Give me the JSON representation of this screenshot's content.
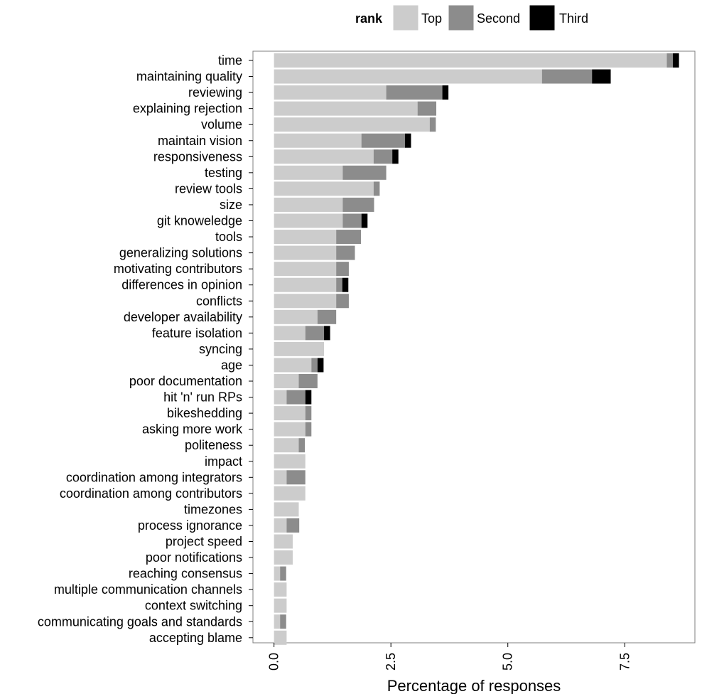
{
  "chart_data": {
    "type": "bar",
    "orientation": "horizontal",
    "stacked": true,
    "xlabel": "Percentage of responses",
    "ylabel": "",
    "xlim": [
      -0.45,
      9.0
    ],
    "xticks": [
      0.0,
      2.5,
      5.0,
      7.5
    ],
    "xtick_labels": [
      "0.0",
      "2.5",
      "5.0",
      "7.5"
    ],
    "grid": false,
    "legend": {
      "title": "rank",
      "position": "top"
    },
    "categories": [
      "time",
      "maintaining quality",
      "reviewing",
      "explaining rejection",
      "volume",
      "maintain vision",
      "responsiveness",
      "testing",
      "review tools",
      "size",
      "git knoweledge",
      "tools",
      "generalizing solutions",
      "motivating contributors",
      "differences in opinion",
      "conflicts",
      "developer availability",
      "feature isolation",
      "syncing",
      "age",
      "poor documentation",
      "hit 'n' run RPs",
      "bikeshedding",
      "asking more work",
      "politeness",
      "impact",
      "coordination among integrators",
      "coordination among contributors",
      "timezones",
      "process ignorance",
      "project speed",
      "poor notifications",
      "reaching consensus",
      "multiple communication channels",
      "context switching",
      "communicating goals and standards",
      "accepting blame"
    ],
    "series": [
      {
        "name": "Top",
        "color": "#cccccc",
        "values": [
          8.4,
          5.73,
          2.4,
          3.07,
          3.33,
          1.87,
          2.13,
          1.47,
          2.13,
          1.47,
          1.47,
          1.33,
          1.33,
          1.33,
          1.33,
          1.33,
          0.93,
          0.67,
          1.07,
          0.8,
          0.53,
          0.27,
          0.67,
          0.67,
          0.53,
          0.67,
          0.27,
          0.67,
          0.53,
          0.27,
          0.4,
          0.4,
          0.13,
          0.27,
          0.27,
          0.13,
          0.27
        ]
      },
      {
        "name": "Second",
        "color": "#8c8c8c",
        "values": [
          0.13,
          1.07,
          1.2,
          0.4,
          0.13,
          0.93,
          0.4,
          0.93,
          0.13,
          0.67,
          0.4,
          0.53,
          0.4,
          0.27,
          0.13,
          0.27,
          0.4,
          0.4,
          0.0,
          0.13,
          0.4,
          0.4,
          0.13,
          0.13,
          0.13,
          0.0,
          0.4,
          0.0,
          0.0,
          0.27,
          0.0,
          0.0,
          0.13,
          0.0,
          0.0,
          0.13,
          0.0
        ]
      },
      {
        "name": "Third",
        "color": "#000000",
        "values": [
          0.13,
          0.4,
          0.13,
          0.0,
          0.0,
          0.13,
          0.13,
          0.0,
          0.0,
          0.0,
          0.13,
          0.0,
          0.0,
          0.0,
          0.13,
          0.0,
          0.0,
          0.13,
          0.0,
          0.13,
          0.0,
          0.13,
          0.0,
          0.0,
          0.0,
          0.0,
          0.0,
          0.0,
          0.0,
          0.0,
          0.0,
          0.0,
          0.0,
          0.0,
          0.0,
          0.0,
          0.0
        ]
      }
    ]
  }
}
